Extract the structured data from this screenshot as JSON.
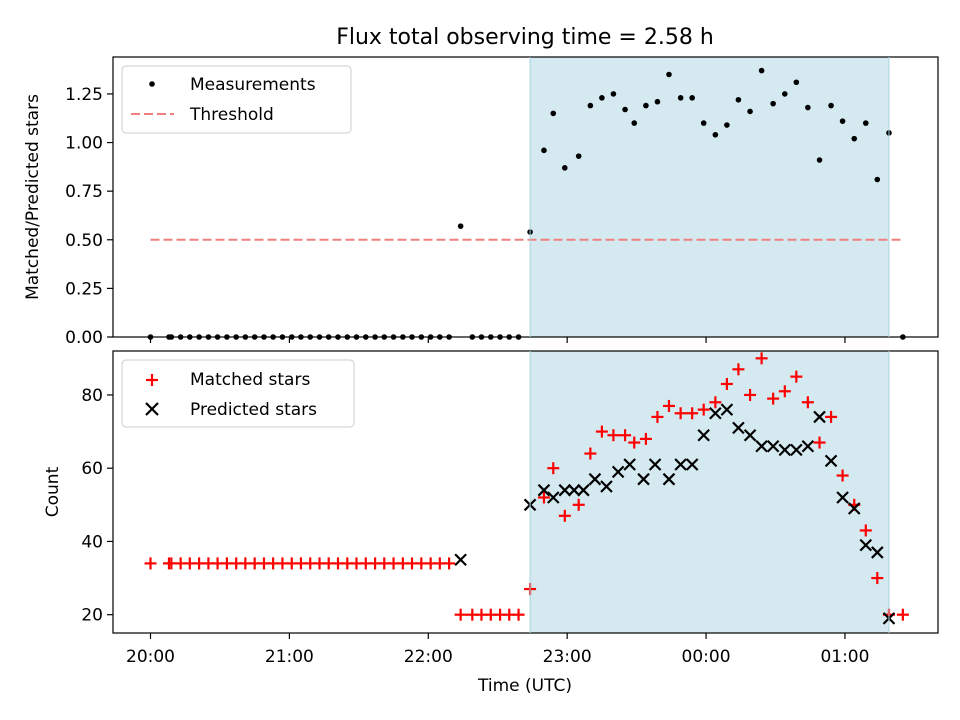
{
  "chart_data": [
    {
      "type": "scatter",
      "title": "Flux total observing time = 2.58 h",
      "ylabel": "Matched/Predicted stars",
      "ylim": [
        0,
        1.44
      ],
      "yticks": [
        "0.00",
        "0.25",
        "0.50",
        "0.75",
        "1.00",
        "1.25"
      ],
      "shaded_region": {
        "from_hours": 22.733,
        "to_hours": 25.317,
        "color": "#d4eaf0"
      },
      "threshold": {
        "value": 0.5,
        "from_hours": 20.0,
        "to_hours": 25.417,
        "color": "#f08080"
      },
      "legend": {
        "position": "upper left",
        "entries": [
          "Measurements",
          "Threshold"
        ]
      },
      "series": [
        {
          "name": "Measurements",
          "marker": "dot",
          "x_hours": [
            20.0,
            20.133,
            20.15,
            20.217,
            20.283,
            20.35,
            20.417,
            20.483,
            20.55,
            20.617,
            20.683,
            20.75,
            20.817,
            20.883,
            20.95,
            21.017,
            21.083,
            21.15,
            21.217,
            21.283,
            21.35,
            21.417,
            21.483,
            21.55,
            21.617,
            21.683,
            21.75,
            21.817,
            21.883,
            21.95,
            22.017,
            22.083,
            22.15,
            22.233,
            22.317,
            22.383,
            22.45,
            22.517,
            22.583,
            22.65,
            22.733,
            22.833,
            22.9,
            22.983,
            23.083,
            23.167,
            23.25,
            23.333,
            23.417,
            23.483,
            23.567,
            23.65,
            23.733,
            23.817,
            23.9,
            23.983,
            24.067,
            24.15,
            24.233,
            24.317,
            24.4,
            24.483,
            24.567,
            24.65,
            24.733,
            24.817,
            24.9,
            24.983,
            25.067,
            25.15,
            25.233,
            25.317,
            25.417
          ],
          "values": [
            0,
            0,
            0,
            0,
            0,
            0,
            0,
            0,
            0,
            0,
            0,
            0,
            0,
            0,
            0,
            0,
            0,
            0,
            0,
            0,
            0,
            0,
            0,
            0,
            0,
            0,
            0,
            0,
            0,
            0,
            0,
            0,
            0,
            0.57,
            0,
            0,
            0,
            0,
            0,
            0,
            0.54,
            0.96,
            1.15,
            0.87,
            0.93,
            1.19,
            1.23,
            1.25,
            1.17,
            1.1,
            1.19,
            1.21,
            1.35,
            1.23,
            1.23,
            1.1,
            1.04,
            1.09,
            1.22,
            1.16,
            1.37,
            1.2,
            1.25,
            1.31,
            1.18,
            0.91,
            1.19,
            1.11,
            1.02,
            1.1,
            0.81,
            1.05,
            0
          ]
        }
      ]
    },
    {
      "type": "scatter",
      "xlabel": "Time (UTC)",
      "ylabel": "Count",
      "ylim": [
        15,
        92
      ],
      "yticks": [
        "20",
        "40",
        "60",
        "80"
      ],
      "xticks": [
        {
          "hours": 20,
          "label": "20:00"
        },
        {
          "hours": 21,
          "label": "21:00"
        },
        {
          "hours": 22,
          "label": "22:00"
        },
        {
          "hours": 23,
          "label": "23:00"
        },
        {
          "hours": 24,
          "label": "00:00"
        },
        {
          "hours": 25,
          "label": "01:00"
        }
      ],
      "shaded_region": {
        "from_hours": 22.733,
        "to_hours": 25.317,
        "color": "#d4eaf0"
      },
      "legend": {
        "position": "upper left",
        "entries": [
          "Matched stars",
          "Predicted stars"
        ]
      },
      "series": [
        {
          "name": "Matched stars",
          "marker": "plus",
          "color": "#ff0000",
          "x_hours": [
            20.0,
            20.133,
            20.15,
            20.217,
            20.283,
            20.35,
            20.417,
            20.483,
            20.55,
            20.617,
            20.683,
            20.75,
            20.817,
            20.883,
            20.95,
            21.017,
            21.083,
            21.15,
            21.217,
            21.283,
            21.35,
            21.417,
            21.483,
            21.55,
            21.617,
            21.683,
            21.75,
            21.817,
            21.883,
            21.95,
            22.017,
            22.083,
            22.15,
            22.233,
            22.317,
            22.383,
            22.45,
            22.517,
            22.583,
            22.65,
            22.733,
            22.833,
            22.9,
            22.983,
            23.083,
            23.167,
            23.25,
            23.333,
            23.417,
            23.483,
            23.567,
            23.65,
            23.733,
            23.817,
            23.9,
            23.983,
            24.067,
            24.15,
            24.233,
            24.317,
            24.4,
            24.483,
            24.567,
            24.65,
            24.733,
            24.817,
            24.9,
            24.983,
            25.067,
            25.15,
            25.233,
            25.317,
            25.417
          ],
          "values": [
            34,
            34,
            34,
            34,
            34,
            34,
            34,
            34,
            34,
            34,
            34,
            34,
            34,
            34,
            34,
            34,
            34,
            34,
            34,
            34,
            34,
            34,
            34,
            34,
            34,
            34,
            34,
            34,
            34,
            34,
            34,
            34,
            34,
            20,
            20,
            20,
            20,
            20,
            20,
            20,
            27,
            52,
            60,
            47,
            50,
            64,
            70,
            69,
            69,
            67,
            68,
            74,
            77,
            75,
            75,
            76,
            78,
            83,
            87,
            80,
            90,
            79,
            81,
            85,
            78,
            67,
            74,
            58,
            50,
            43,
            30,
            20,
            20
          ]
        },
        {
          "name": "Predicted stars",
          "marker": "x",
          "color": "#000000",
          "x_hours": [
            22.233,
            22.733,
            22.833,
            22.9,
            22.983,
            23.05,
            23.117,
            23.2,
            23.283,
            23.367,
            23.45,
            23.55,
            23.633,
            23.733,
            23.817,
            23.9,
            23.983,
            24.067,
            24.15,
            24.233,
            24.317,
            24.4,
            24.483,
            24.567,
            24.65,
            24.733,
            24.817,
            24.9,
            24.983,
            25.067,
            25.15,
            25.233,
            25.317
          ],
          "values": [
            35,
            50,
            54,
            52,
            54,
            54,
            54,
            57,
            55,
            59,
            61,
            57,
            61,
            57,
            61,
            61,
            69,
            75,
            76,
            71,
            69,
            66,
            66,
            65,
            65,
            66,
            74,
            62,
            52,
            49,
            39,
            37,
            19
          ]
        }
      ]
    }
  ]
}
